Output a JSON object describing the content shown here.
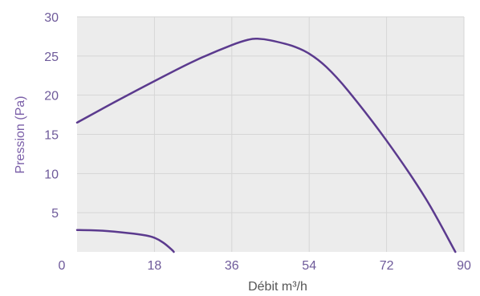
{
  "chart_data": {
    "type": "line",
    "xlabel": "Débit m³/h",
    "ylabel": "Pression (Pa)",
    "xlim": [
      0,
      90
    ],
    "ylim": [
      0,
      30
    ],
    "x_ticks": [
      0,
      18,
      36,
      54,
      72,
      90
    ],
    "y_ticks": [
      5,
      10,
      15,
      20,
      25,
      30
    ],
    "x_tick_labels": [
      "0",
      "18",
      "36",
      "54",
      "72",
      "90"
    ],
    "y_tick_labels": [
      "5",
      "10",
      "15",
      "20",
      "25",
      "30"
    ],
    "grid": true,
    "legend": "none",
    "colors": {
      "line": "#5b3a8e",
      "plot_bg": "#ececec",
      "grid": "#d6d6d6",
      "tick_text": "#6e5a9a",
      "xlabel_text": "#555555",
      "ylabel_text": "#7a5ea8"
    },
    "series": [
      {
        "points": [
          [
            0,
            16.5
          ],
          [
            9,
            19.2
          ],
          [
            18,
            21.8
          ],
          [
            27,
            24.3
          ],
          [
            36,
            26.4
          ],
          [
            40,
            27.1
          ],
          [
            42,
            27.2
          ],
          [
            45,
            27.0
          ],
          [
            50,
            26.3
          ],
          [
            54,
            25.3
          ],
          [
            58,
            23.6
          ],
          [
            63,
            20.6
          ],
          [
            72,
            14.2
          ],
          [
            81,
            6.9
          ],
          [
            88,
            0
          ]
        ]
      },
      {
        "points": [
          [
            0,
            2.8
          ],
          [
            6,
            2.7
          ],
          [
            12,
            2.4
          ],
          [
            16,
            2.1
          ],
          [
            18,
            1.8
          ],
          [
            20,
            1.2
          ],
          [
            22,
            0.3
          ],
          [
            22.5,
            0
          ]
        ]
      }
    ]
  }
}
